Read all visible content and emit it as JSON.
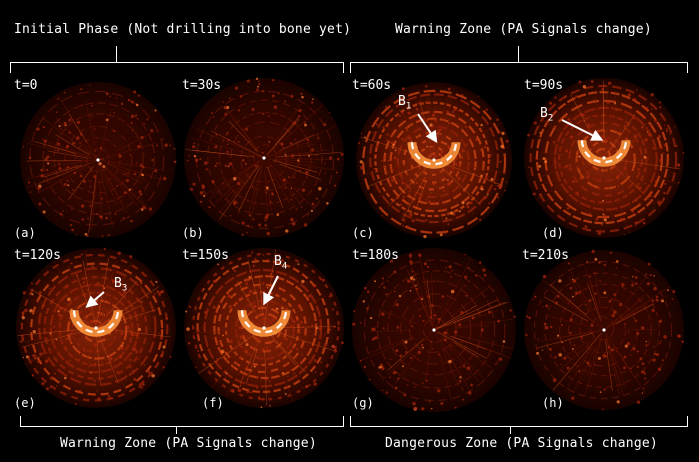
{
  "headers": {
    "top_left": "Initial Phase (Not drilling into bone yet)",
    "top_right": "Warning Zone (PA Signals change)",
    "bottom_left": "Warning Zone (PA Signals change)",
    "bottom_right": "Dangerous Zone (PA Signals change)"
  },
  "panels": [
    {
      "time": "t=0",
      "letter": "(a)",
      "boundary": false,
      "marker": ""
    },
    {
      "time": "t=30s",
      "letter": "(b)",
      "boundary": false,
      "marker": ""
    },
    {
      "time": "t=60s",
      "letter": "(c)",
      "boundary": true,
      "marker": "B",
      "marker_sub": "1"
    },
    {
      "time": "t=90s",
      "letter": "(d)",
      "boundary": true,
      "marker": "B",
      "marker_sub": "2"
    },
    {
      "time": "t=120s",
      "letter": "(e)",
      "boundary": true,
      "marker": "B",
      "marker_sub": "3"
    },
    {
      "time": "t=150s",
      "letter": "(f)",
      "boundary": true,
      "marker": "B",
      "marker_sub": "4"
    },
    {
      "time": "t=180s",
      "letter": "(g)",
      "boundary": false,
      "marker": ""
    },
    {
      "time": "t=210s",
      "letter": "(h)",
      "boundary": false,
      "marker": ""
    }
  ],
  "colors": {
    "background": "#000000",
    "signal_dark": "#4a0a00",
    "signal_mid": "#b0280a",
    "signal_bright": "#ff8a3a",
    "boundary_dash": "#ffffff"
  }
}
